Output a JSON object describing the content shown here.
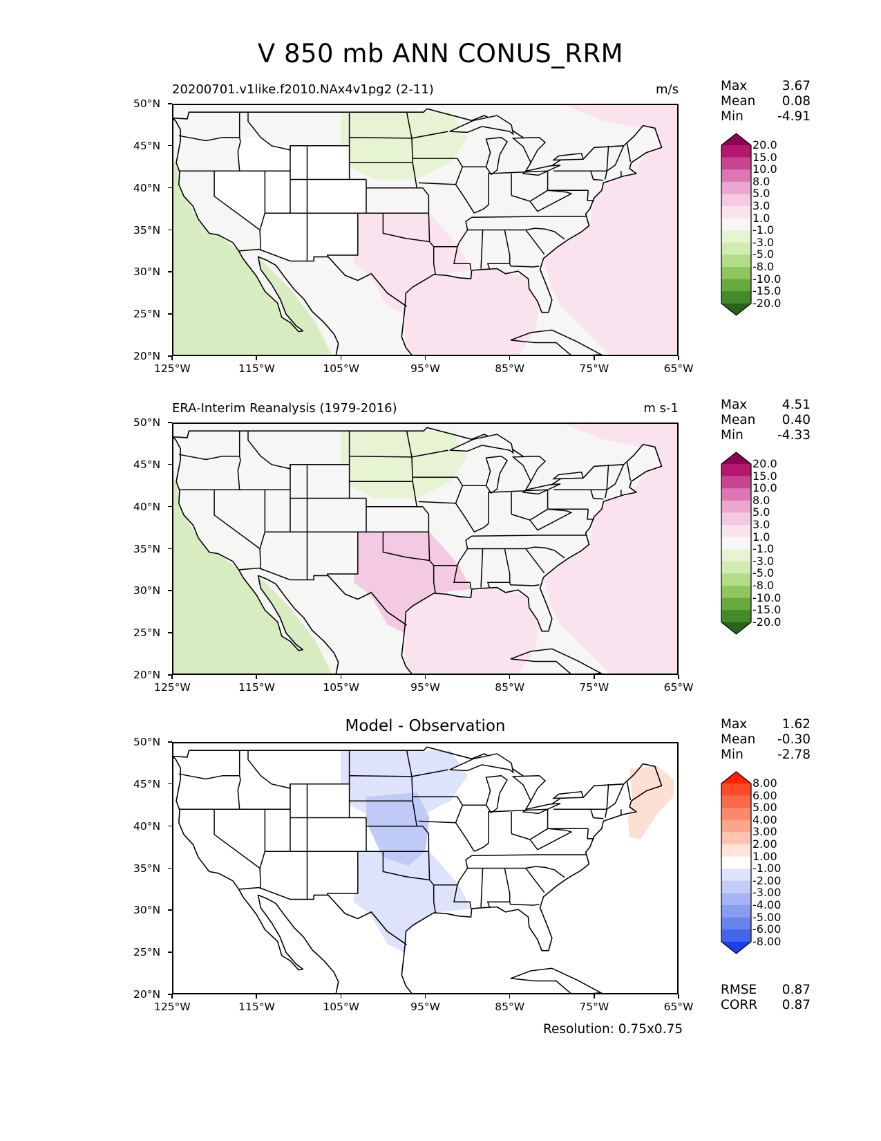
{
  "title": "V 850 mb ANN CONUS_RRM",
  "panels": [
    {
      "title_left": "20200701.v1like.f2010.NAx4v1pg2 (2-11)",
      "units": "m/s",
      "stats": [
        {
          "label": "Max",
          "value": "3.67"
        },
        {
          "label": "Mean",
          "value": "0.08"
        },
        {
          "label": "Min",
          "value": "-4.91"
        }
      ],
      "colorbar": {
        "labels": [
          "20.0",
          "15.0",
          "10.0",
          "8.0",
          "5.0",
          "3.0",
          "1.0",
          "-1.0",
          "-3.0",
          "-5.0",
          "-8.0",
          "-10.0",
          "-15.0",
          "-20.0"
        ],
        "colors": [
          "#8e0152",
          "#b3176e",
          "#c8468f",
          "#dc77b3",
          "#eba6d0",
          "#f4c9e4",
          "#fbe2ef",
          "#f7f7f7",
          "#e7f4d4",
          "#d0ecb0",
          "#b2dc87",
          "#8fc65f",
          "#68a93c",
          "#438a2a",
          "#276419"
        ]
      },
      "map_fill": [
        {
          "region": "pacific",
          "color": "#d7ecc0"
        },
        {
          "region": "atlantic",
          "color": "#fbe2ef"
        },
        {
          "region": "gulf",
          "color": "#fbe2ef"
        },
        {
          "region": "northern-plains",
          "color": "#e7f4d4"
        },
        {
          "region": "southern-plains",
          "color": "#fbe2ef"
        },
        {
          "region": "interior-west",
          "color": "#ffffff"
        }
      ]
    },
    {
      "title_left": "ERA-Interim Reanalysis (1979-2016)",
      "units": "m s-1",
      "stats": [
        {
          "label": "Max",
          "value": "4.51"
        },
        {
          "label": "Mean",
          "value": "0.40"
        },
        {
          "label": "Min",
          "value": "-4.33"
        }
      ],
      "colorbar": {
        "labels": [
          "20.0",
          "15.0",
          "10.0",
          "8.0",
          "5.0",
          "3.0",
          "1.0",
          "-1.0",
          "-3.0",
          "-5.0",
          "-8.0",
          "-10.0",
          "-15.0",
          "-20.0"
        ],
        "colors": [
          "#8e0152",
          "#b3176e",
          "#c8468f",
          "#dc77b3",
          "#eba6d0",
          "#f4c9e4",
          "#fbe2ef",
          "#f7f7f7",
          "#e7f4d4",
          "#d0ecb0",
          "#b2dc87",
          "#8fc65f",
          "#68a93c",
          "#438a2a",
          "#276419"
        ]
      },
      "map_fill": [
        {
          "region": "pacific",
          "color": "#d7ecc0"
        },
        {
          "region": "atlantic",
          "color": "#fbe2ef"
        },
        {
          "region": "gulf",
          "color": "#fbe2ef"
        },
        {
          "region": "northern-plains",
          "color": "#e7f4d4"
        },
        {
          "region": "southern-plains",
          "color": "#f4c9e4"
        },
        {
          "region": "interior-west",
          "color": "#f7f7f7"
        }
      ]
    },
    {
      "title_center": "Model - Observation",
      "stats": [
        {
          "label": "Max",
          "value": "1.62"
        },
        {
          "label": "Mean",
          "value": "-0.30"
        },
        {
          "label": "Min",
          "value": "-2.78"
        }
      ],
      "colorbar": {
        "labels": [
          "8.00",
          "6.00",
          "5.00",
          "4.00",
          "3.00",
          "2.00",
          "1.00",
          "-1.00",
          "-2.00",
          "-3.00",
          "-4.00",
          "-5.00",
          "-6.00",
          "-8.00"
        ],
        "colors": [
          "#ff2200",
          "#fd4a28",
          "#fb6a48",
          "#fa8a6b",
          "#fba68d",
          "#fdc5b1",
          "#fee3d7",
          "#ffffff",
          "#dde3fb",
          "#c2cdf7",
          "#a5b5f4",
          "#889cf0",
          "#6884ec",
          "#4466ea",
          "#1d3ff0"
        ]
      },
      "map_fill": [
        {
          "region": "pacific",
          "color": "#ffffff"
        },
        {
          "region": "atlantic",
          "color": "#ffffff"
        },
        {
          "region": "gulf",
          "color": "#ffffff"
        },
        {
          "region": "northern-plains",
          "color": "#dde3fb"
        },
        {
          "region": "southern-plains",
          "color": "#dde3fb"
        },
        {
          "region": "interior-west",
          "color": "#ffffff"
        },
        {
          "region": "central-plains",
          "color": "#bfcaf6"
        },
        {
          "region": "gulf-of-maine",
          "color": "#fde0d3"
        }
      ],
      "extra_stats": [
        {
          "label": "RMSE",
          "value": "0.87"
        },
        {
          "label": "CORR",
          "value": "0.87"
        }
      ]
    }
  ],
  "lat_ticks": [
    "50°N",
    "45°N",
    "40°N",
    "35°N",
    "30°N",
    "25°N",
    "20°N"
  ],
  "lon_ticks": [
    "125°W",
    "115°W",
    "105°W",
    "95°W",
    "85°W",
    "75°W",
    "65°W"
  ],
  "footer": "Resolution: 0.75x0.75"
}
